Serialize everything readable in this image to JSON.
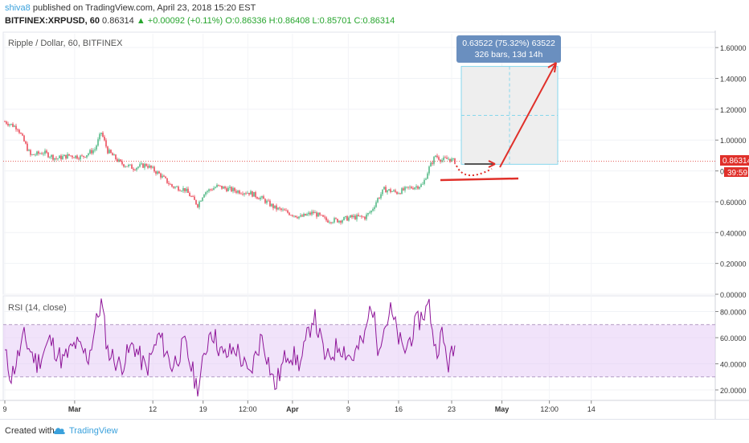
{
  "header": {
    "author": "shiva8",
    "published": "published on TradingView.com, April 23, 2018 15:20 EST",
    "symbol": "BITFINEX:XRPUSD, 60",
    "last": "0.86314",
    "change": "▲ +0.00092 (+0.11%)",
    "open": "O:0.86336",
    "high": "H:0.86408",
    "low": "L:0.85701",
    "close": "C:0.86314"
  },
  "footer": {
    "created": "Created with",
    "brand": "TradingView"
  },
  "colors": {
    "candle_up": "#53b987",
    "candle_down": "#eb4d5c",
    "rsi_line": "#8e1599",
    "rsi_band": "#e6ccf5",
    "accent": "#3aa1dc",
    "annotation_red": "#e0302a",
    "price_label": "#e0302a",
    "box_label": "#6a8fbf"
  },
  "chart_data": [
    {
      "type": "candlestick",
      "title": "Ripple / Dollar, 60, BITFINEX",
      "ylim": [
        0,
        1.7
      ],
      "y_ticks": [
        "0.00000",
        "0.20000",
        "0.40000",
        "0.60000",
        "0.80000",
        "1.00000",
        "1.20000",
        "1.40000",
        "1.60000"
      ],
      "y_tick_values": [
        0,
        0.2,
        0.4,
        0.6,
        0.8,
        1.0,
        1.2,
        1.4,
        1.6
      ],
      "x_ticks": [
        "9",
        "Mar",
        "12",
        "19",
        "12:00",
        "Apr",
        "9",
        "16",
        "23",
        "May",
        "12:00",
        "14"
      ],
      "current_price_label": "0.86314",
      "countdown_label": "39:59",
      "current_price": 0.86314,
      "price_path": [
        {
          "day": 0,
          "price": 1.12
        },
        {
          "day": 2,
          "price": 1.08
        },
        {
          "day": 4,
          "price": 0.9
        },
        {
          "day": 6,
          "price": 0.92
        },
        {
          "day": 8,
          "price": 0.88
        },
        {
          "day": 10,
          "price": 0.9
        },
        {
          "day": 12,
          "price": 0.89
        },
        {
          "day": 14,
          "price": 0.94
        },
        {
          "day": 15,
          "price": 1.05
        },
        {
          "day": 16,
          "price": 0.93
        },
        {
          "day": 18,
          "price": 0.85
        },
        {
          "day": 20,
          "price": 0.82
        },
        {
          "day": 22,
          "price": 0.84
        },
        {
          "day": 24,
          "price": 0.78
        },
        {
          "day": 26,
          "price": 0.7
        },
        {
          "day": 28,
          "price": 0.68
        },
        {
          "day": 30,
          "price": 0.58
        },
        {
          "day": 31,
          "price": 0.66
        },
        {
          "day": 33,
          "price": 0.7
        },
        {
          "day": 36,
          "price": 0.67
        },
        {
          "day": 38,
          "price": 0.66
        },
        {
          "day": 40,
          "price": 0.62
        },
        {
          "day": 42,
          "price": 0.56
        },
        {
          "day": 44,
          "price": 0.53
        },
        {
          "day": 46,
          "price": 0.5
        },
        {
          "day": 48,
          "price": 0.53
        },
        {
          "day": 50,
          "price": 0.48
        },
        {
          "day": 52,
          "price": 0.48
        },
        {
          "day": 54,
          "price": 0.5
        },
        {
          "day": 56,
          "price": 0.5
        },
        {
          "day": 57,
          "price": 0.54
        },
        {
          "day": 58,
          "price": 0.62
        },
        {
          "day": 59,
          "price": 0.68
        },
        {
          "day": 61,
          "price": 0.66
        },
        {
          "day": 63,
          "price": 0.69
        },
        {
          "day": 65,
          "price": 0.71
        },
        {
          "day": 66,
          "price": 0.82
        },
        {
          "day": 67,
          "price": 0.9
        },
        {
          "day": 68,
          "price": 0.87
        },
        {
          "day": 69,
          "price": 0.88
        },
        {
          "day": 70,
          "price": 0.86
        }
      ],
      "annotations": {
        "measure_label_line1": "0.63522 (75.32%) 63522",
        "measure_label_line2": "326 bars, 13d 14h",
        "measure_from_price": 0.843,
        "measure_to_price": 1.478
      }
    },
    {
      "type": "line",
      "title": "RSI (14, close)",
      "ylim": [
        12,
        92
      ],
      "y_ticks": [
        "20.0000",
        "40.0000",
        "60.0000",
        "80.0000"
      ],
      "y_tick_values": [
        20,
        40,
        60,
        80
      ],
      "band": [
        30,
        70
      ],
      "rsi_path": [
        {
          "day": 0,
          "value": 48
        },
        {
          "day": 1,
          "value": 30
        },
        {
          "day": 3,
          "value": 60
        },
        {
          "day": 5,
          "value": 40
        },
        {
          "day": 7,
          "value": 58
        },
        {
          "day": 9,
          "value": 42
        },
        {
          "day": 11,
          "value": 55
        },
        {
          "day": 13,
          "value": 45
        },
        {
          "day": 15,
          "value": 88
        },
        {
          "day": 16,
          "value": 50
        },
        {
          "day": 18,
          "value": 38
        },
        {
          "day": 20,
          "value": 55
        },
        {
          "day": 22,
          "value": 35
        },
        {
          "day": 24,
          "value": 62
        },
        {
          "day": 26,
          "value": 38
        },
        {
          "day": 28,
          "value": 55
        },
        {
          "day": 30,
          "value": 20
        },
        {
          "day": 32,
          "value": 68
        },
        {
          "day": 34,
          "value": 45
        },
        {
          "day": 36,
          "value": 52
        },
        {
          "day": 38,
          "value": 30
        },
        {
          "day": 40,
          "value": 62
        },
        {
          "day": 42,
          "value": 22
        },
        {
          "day": 44,
          "value": 50
        },
        {
          "day": 46,
          "value": 40
        },
        {
          "day": 48,
          "value": 78
        },
        {
          "day": 50,
          "value": 42
        },
        {
          "day": 52,
          "value": 55
        },
        {
          "day": 54,
          "value": 44
        },
        {
          "day": 56,
          "value": 60
        },
        {
          "day": 57,
          "value": 88
        },
        {
          "day": 58,
          "value": 55
        },
        {
          "day": 60,
          "value": 80
        },
        {
          "day": 62,
          "value": 48
        },
        {
          "day": 64,
          "value": 70
        },
        {
          "day": 66,
          "value": 85
        },
        {
          "day": 67,
          "value": 50
        },
        {
          "day": 68,
          "value": 62
        },
        {
          "day": 69,
          "value": 40
        },
        {
          "day": 70,
          "value": 52
        }
      ]
    }
  ]
}
